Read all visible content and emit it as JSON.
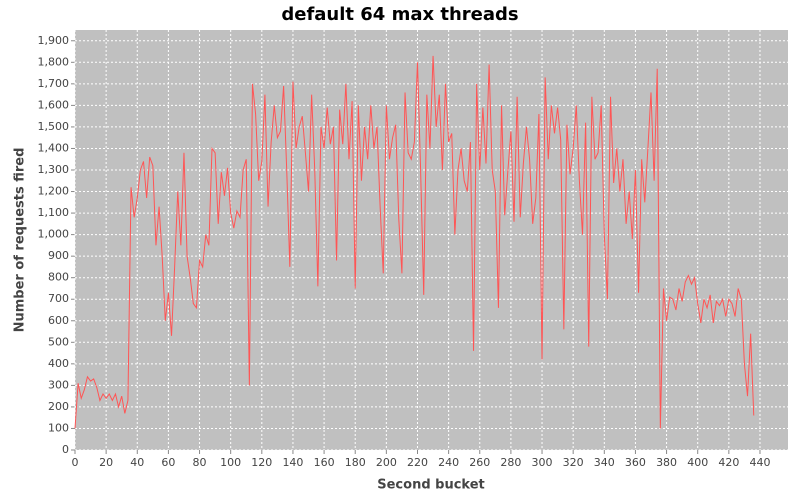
{
  "chart_data": {
    "type": "line",
    "title": "default 64 max threads",
    "x_label": "Second bucket",
    "y_label": "Number of requests fired",
    "color": "#ff5555",
    "grid": true,
    "xlim": [
      0,
      458
    ],
    "ylim": [
      0,
      1950
    ],
    "xticks": [
      0,
      20,
      40,
      60,
      80,
      100,
      120,
      140,
      160,
      180,
      200,
      220,
      240,
      260,
      280,
      300,
      320,
      340,
      360,
      380,
      400,
      420,
      440
    ],
    "yticks": [
      0,
      100,
      200,
      300,
      400,
      500,
      600,
      700,
      800,
      900,
      {
        "value": 1000,
        "label": "1,000"
      },
      {
        "value": 1100,
        "label": "1,100"
      },
      {
        "value": 1200,
        "label": "1,200"
      },
      {
        "value": 1300,
        "label": "1,300"
      },
      {
        "value": 1400,
        "label": "1,400"
      },
      {
        "value": 1500,
        "label": "1,500"
      },
      {
        "value": 1600,
        "label": "1,600"
      },
      {
        "value": 1700,
        "label": "1,700"
      },
      {
        "value": 1800,
        "label": "1,800"
      },
      {
        "value": 1900,
        "label": "1,900"
      }
    ],
    "x": [
      0,
      2,
      4,
      6,
      8,
      10,
      12,
      14,
      16,
      18,
      20,
      22,
      24,
      26,
      28,
      30,
      32,
      34,
      36,
      38,
      40,
      42,
      44,
      46,
      48,
      50,
      52,
      54,
      56,
      58,
      60,
      62,
      64,
      66,
      68,
      70,
      72,
      74,
      76,
      78,
      80,
      82,
      84,
      86,
      88,
      90,
      92,
      94,
      96,
      98,
      100,
      102,
      104,
      106,
      108,
      110,
      112,
      114,
      116,
      118,
      120,
      122,
      124,
      126,
      128,
      130,
      132,
      134,
      136,
      138,
      140,
      142,
      144,
      146,
      148,
      150,
      152,
      154,
      156,
      158,
      160,
      162,
      164,
      166,
      168,
      170,
      172,
      174,
      176,
      178,
      180,
      182,
      184,
      186,
      188,
      190,
      192,
      194,
      196,
      198,
      200,
      202,
      204,
      206,
      208,
      210,
      212,
      214,
      216,
      218,
      220,
      222,
      224,
      226,
      228,
      230,
      232,
      234,
      236,
      238,
      240,
      242,
      244,
      246,
      248,
      250,
      252,
      254,
      256,
      258,
      260,
      262,
      264,
      266,
      268,
      270,
      272,
      274,
      276,
      278,
      280,
      282,
      284,
      286,
      288,
      290,
      292,
      294,
      296,
      298,
      300,
      302,
      304,
      306,
      308,
      310,
      312,
      314,
      316,
      318,
      320,
      322,
      324,
      326,
      328,
      330,
      332,
      334,
      336,
      338,
      340,
      342,
      344,
      346,
      348,
      350,
      352,
      354,
      356,
      358,
      360,
      362,
      364,
      366,
      368,
      370,
      372,
      374,
      376,
      378,
      380,
      382,
      384,
      386,
      388,
      390,
      392,
      394,
      396,
      398,
      400,
      402,
      404,
      406,
      408,
      410,
      412,
      414,
      416,
      418,
      420,
      422,
      424,
      426,
      428,
      430,
      432,
      434,
      436
    ],
    "values": [
      100,
      310,
      240,
      280,
      340,
      320,
      330,
      290,
      230,
      260,
      240,
      260,
      230,
      260,
      200,
      250,
      170,
      230,
      1220,
      1080,
      1170,
      1300,
      1340,
      1170,
      1360,
      1320,
      950,
      1130,
      900,
      600,
      730,
      530,
      850,
      1200,
      950,
      1380,
      900,
      800,
      680,
      660,
      880,
      850,
      1000,
      950,
      1400,
      1380,
      1050,
      1290,
      1180,
      1310,
      1100,
      1030,
      1110,
      1080,
      1300,
      1350,
      300,
      1700,
      1560,
      1250,
      1340,
      1650,
      1130,
      1430,
      1600,
      1450,
      1480,
      1690,
      1300,
      850,
      1710,
      1400,
      1500,
      1550,
      1380,
      1200,
      1650,
      1300,
      760,
      1500,
      1400,
      1590,
      1420,
      1500,
      880,
      1580,
      1420,
      1700,
      1350,
      1620,
      750,
      1600,
      1250,
      1500,
      1350,
      1600,
      1400,
      1500,
      1130,
      820,
      1600,
      1350,
      1450,
      1510,
      1070,
      820,
      1660,
      1380,
      1350,
      1430,
      1800,
      1300,
      720,
      1650,
      1400,
      1830,
      1500,
      1650,
      1300,
      1700,
      1430,
      1470,
      1000,
      1300,
      1400,
      1250,
      1200,
      1430,
      460,
      1700,
      1300,
      1590,
      1330,
      1790,
      1300,
      1200,
      660,
      1600,
      1090,
      1290,
      1480,
      1060,
      1640,
      1080,
      1330,
      1500,
      1350,
      1050,
      1170,
      1560,
      420,
      1730,
      1350,
      1600,
      1470,
      1590,
      1440,
      560,
      1510,
      1280,
      1400,
      1600,
      1250,
      1000,
      1520,
      480,
      1640,
      1350,
      1380,
      1600,
      1000,
      700,
      1640,
      1240,
      1400,
      1200,
      1350,
      1050,
      1200,
      980,
      1300,
      730,
      1350,
      1150,
      1400,
      1660,
      1250,
      1770,
      100,
      750,
      600,
      710,
      700,
      650,
      750,
      690,
      780,
      810,
      770,
      800,
      680,
      590,
      700,
      660,
      720,
      590,
      690,
      670,
      700,
      620,
      700,
      680,
      620,
      750,
      700,
      400,
      250,
      540,
      160
    ]
  }
}
